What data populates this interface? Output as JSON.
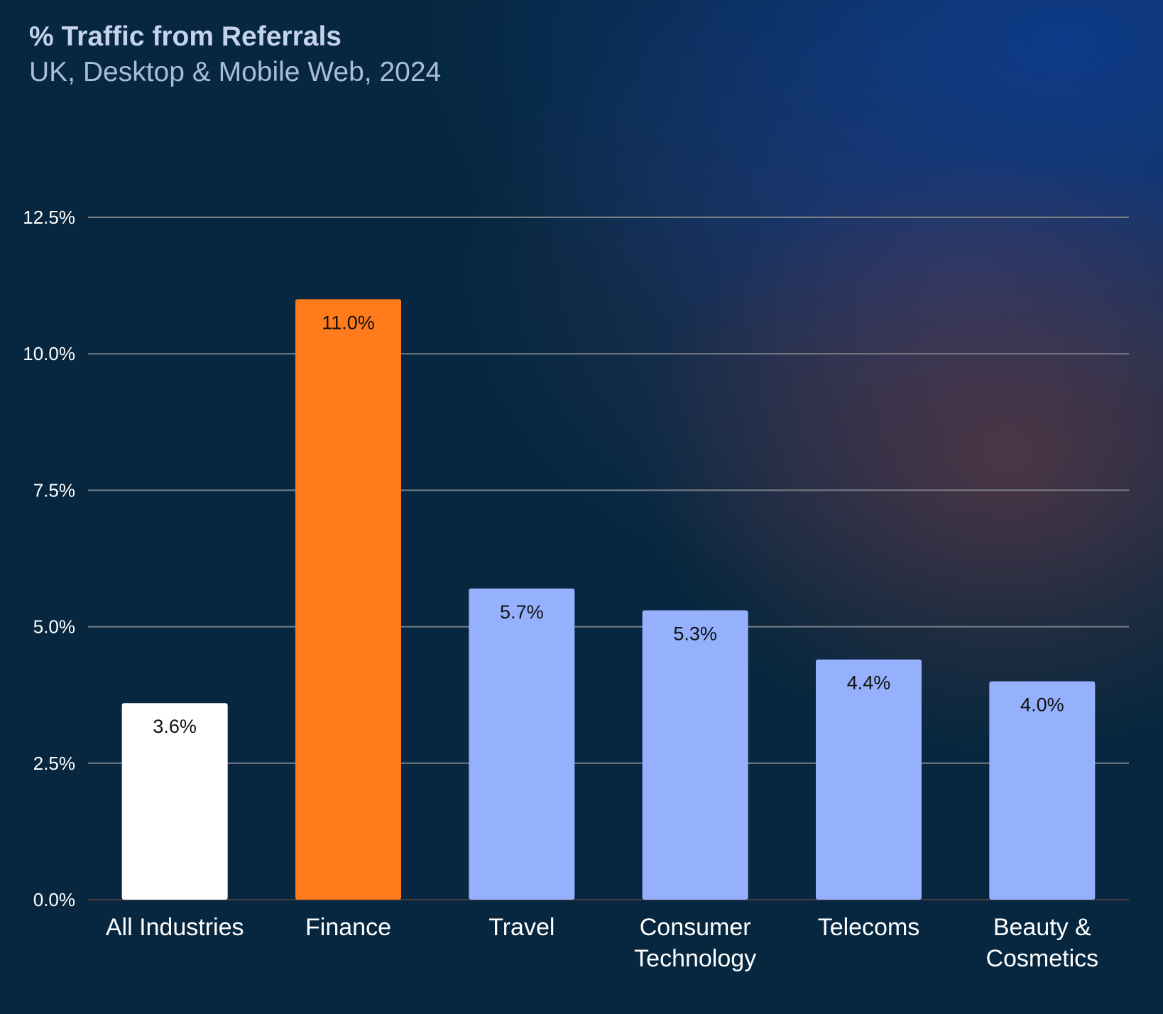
{
  "chart_data": {
    "type": "bar",
    "title": "% Traffic from Referrals",
    "subtitle": "UK, Desktop & Mobile Web, 2024",
    "xlabel": "",
    "ylabel": "",
    "ylim": [
      0,
      12.5
    ],
    "yticks": [
      0,
      2.5,
      5,
      7.5,
      10,
      12.5
    ],
    "ytick_labels": [
      "0.0%",
      "2.5%",
      "5.0%",
      "7.5%",
      "10.0%",
      "12.5%"
    ],
    "grid": true,
    "categories": [
      [
        "All Industries"
      ],
      [
        "Finance"
      ],
      [
        "Travel"
      ],
      [
        "Consumer",
        "Technology"
      ],
      [
        "Telecoms"
      ],
      [
        "Beauty &",
        "Cosmetics"
      ]
    ],
    "values": [
      3.6,
      11.0,
      5.7,
      5.3,
      4.4,
      4.0
    ],
    "data_labels": [
      "3.6%",
      "11.0%",
      "5.7%",
      "5.3%",
      "4.4%",
      "4.0%"
    ],
    "colors": [
      "#ffffff",
      "#ff7b1c",
      "#95b0fd",
      "#95b0fd",
      "#95b0fd",
      "#95b0fd"
    ]
  },
  "colors": {
    "gridline": "#7a7f86",
    "axis_line": "#4a3b3f"
  }
}
